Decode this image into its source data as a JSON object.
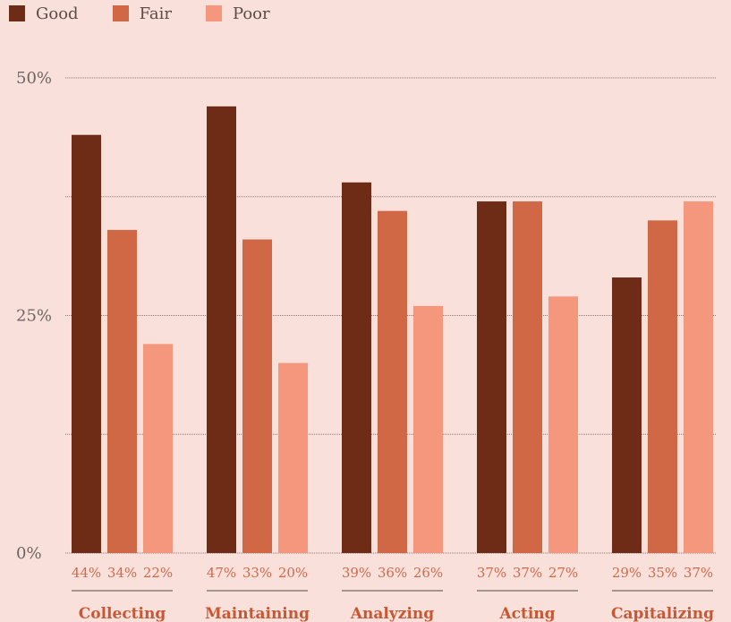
{
  "colors": {
    "background": "#f9e0da",
    "good": "#6e2c16",
    "fair": "#d06845",
    "poor": "#f5977c",
    "value_label": "#d4694a",
    "category_label": "#c85733",
    "grid": "#8a7a75"
  },
  "chart_data": {
    "type": "bar",
    "categories": [
      "Collecting",
      "Maintaining",
      "Analyzing",
      "Acting",
      "Capitalizing"
    ],
    "series": [
      {
        "name": "Good",
        "values": [
          44,
          47,
          39,
          37,
          29
        ]
      },
      {
        "name": "Fair",
        "values": [
          34,
          33,
          36,
          37,
          35
        ]
      },
      {
        "name": "Poor",
        "values": [
          22,
          20,
          26,
          27,
          37
        ]
      }
    ],
    "value_labels": [
      [
        "44%",
        "34%",
        "22%"
      ],
      [
        "47%",
        "33%",
        "20%"
      ],
      [
        "39%",
        "36%",
        "26%"
      ],
      [
        "37%",
        "37%",
        "27%"
      ],
      [
        "29%",
        "35%",
        "37%"
      ]
    ],
    "yticks": [
      {
        "value": 0,
        "label": "0%"
      },
      {
        "value": 25,
        "label": "25%"
      },
      {
        "value": 50,
        "label": "50%"
      }
    ],
    "gridlines": [
      0,
      12.5,
      25,
      37.5,
      50
    ],
    "ylim": [
      0,
      50
    ],
    "legend_position": "top-left",
    "grid": true
  }
}
